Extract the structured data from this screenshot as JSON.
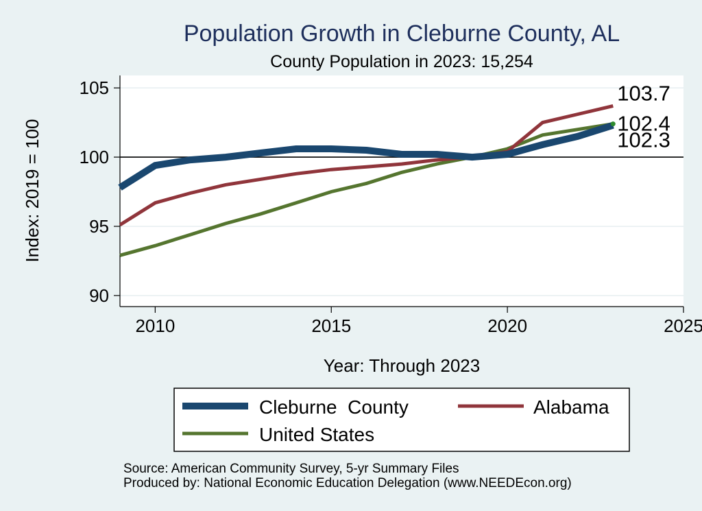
{
  "chart_data": {
    "type": "line",
    "title": "Population Growth in Cleburne County, AL",
    "subtitle": "County Population in 2023: 15,254",
    "xlabel": "Year: Through 2023",
    "ylabel": "Index: 2019 = 100",
    "xlim": [
      2009,
      2025
    ],
    "ylim": [
      90,
      105
    ],
    "x_ticks": [
      2010,
      2015,
      2020,
      2025
    ],
    "y_ticks": [
      90,
      95,
      100,
      105
    ],
    "reference_line": 100,
    "grid": true,
    "legend_position": "bottom",
    "x": [
      2009,
      2010,
      2011,
      2012,
      2013,
      2014,
      2015,
      2016,
      2017,
      2018,
      2019,
      2020,
      2021,
      2022,
      2023
    ],
    "series": [
      {
        "name": "Cleburne  County",
        "color": "#1a476f",
        "values": [
          97.8,
          99.4,
          99.8,
          100.0,
          100.3,
          100.6,
          100.6,
          100.5,
          100.2,
          100.2,
          100.0,
          100.2,
          100.9,
          101.5,
          102.3
        ],
        "end_label": "102.3"
      },
      {
        "name": "Alabama",
        "color": "#90353b",
        "values": [
          95.1,
          96.7,
          97.4,
          98.0,
          98.4,
          98.8,
          99.1,
          99.3,
          99.5,
          99.8,
          100.0,
          100.4,
          102.5,
          103.1,
          103.7
        ],
        "end_label": "103.7"
      },
      {
        "name": "United States",
        "color": "#55752f",
        "values": [
          92.9,
          93.6,
          94.4,
          95.2,
          95.9,
          96.7,
          97.5,
          98.1,
          98.9,
          99.5,
          100.0,
          100.6,
          101.6,
          102.0,
          102.4
        ],
        "end_label": "102.4"
      }
    ]
  },
  "footer": {
    "source": "Source: American Community Survey, 5-yr Summary Files",
    "produced_by": "Produced by: National Economic Education Delegation (www.NEEDEcon.org)"
  },
  "colors": {
    "background": "#eaf2f3",
    "plot_background": "#ffffff",
    "title": "#1e2f5c",
    "endpoint_dot": "#2e8b2e"
  }
}
